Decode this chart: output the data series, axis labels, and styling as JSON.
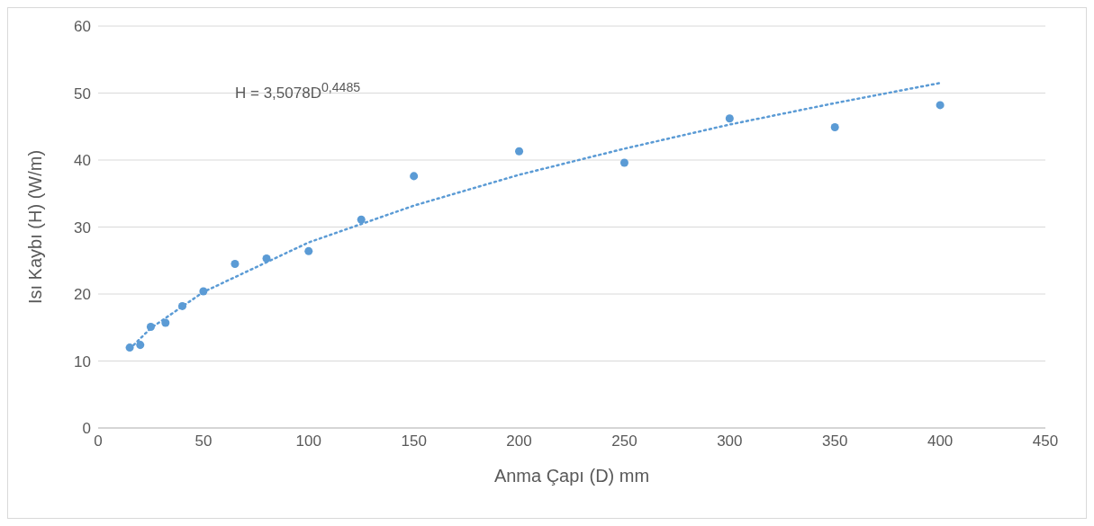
{
  "chart_data": {
    "type": "scatter",
    "xlabel": "Anma Çapı (D) mm",
    "ylabel": "Isı Kaybı (H) (W/m)",
    "xlim": [
      0,
      450
    ],
    "xticks": [
      0,
      50,
      100,
      150,
      200,
      250,
      300,
      350,
      400,
      450
    ],
    "ylim": [
      0,
      60
    ],
    "yticks": [
      0,
      10,
      20,
      30,
      40,
      50,
      60
    ],
    "grid": "y",
    "annotations": [
      "H = 3,5078D$^{0,4485}$"
    ],
    "series": [
      {
        "marker": "circle",
        "color": "#5b9bd5",
        "x": [
          15,
          20,
          25,
          32,
          40,
          50,
          65,
          80,
          100,
          125,
          150,
          200,
          250,
          300,
          350,
          400
        ],
        "values": [
          12.0,
          12.4,
          15.1,
          15.7,
          18.2,
          20.4,
          24.5,
          25.3,
          26.4,
          31.1,
          37.6,
          41.3,
          39.6,
          46.2,
          44.9,
          48.2
        ]
      },
      {
        "type": "line",
        "marker": "none",
        "color": "#5b9bd5",
        "line_style": "dotted",
        "x": [
          15,
          25,
          50,
          100,
          150,
          200,
          250,
          300,
          350,
          400
        ],
        "values": [
          11.8,
          14.9,
          20.3,
          27.7,
          33.2,
          37.8,
          41.7,
          45.3,
          48.5,
          51.5
        ]
      }
    ]
  }
}
